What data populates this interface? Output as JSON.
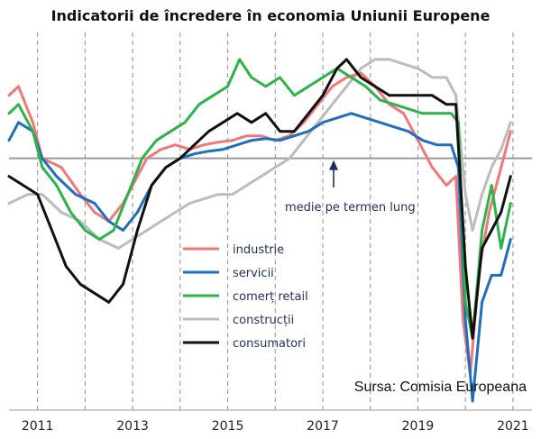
{
  "chart_data": {
    "type": "line",
    "title": "Indicatorii de încredere în economia Uniunii Europene",
    "xlabel": "",
    "ylabel": "",
    "x_ticks": [
      "2011",
      "2013",
      "2015",
      "2017",
      "2019",
      "2021"
    ],
    "x_range": [
      2010.4,
      2021.4
    ],
    "y_range": [
      -28,
      14
    ],
    "grid_vertical_dashed": true,
    "legend_position": "center-left",
    "reference_line": {
      "value": 0,
      "color": "#9a9a9a"
    },
    "annotation": {
      "text": "medie pe termen lung",
      "arrow_to_value": 0
    },
    "source": "Sursa: Comisia Europeana",
    "series": [
      {
        "name": "industrie",
        "color": "#f07878",
        "points": [
          [
            2010.4,
            7
          ],
          [
            2010.6,
            8
          ],
          [
            2010.9,
            4
          ],
          [
            2011.1,
            0
          ],
          [
            2011.5,
            -1
          ],
          [
            2011.9,
            -4
          ],
          [
            2012.2,
            -6
          ],
          [
            2012.5,
            -7
          ],
          [
            2012.8,
            -5
          ],
          [
            2013.0,
            -3
          ],
          [
            2013.3,
            0
          ],
          [
            2013.6,
            1
          ],
          [
            2013.9,
            1.5
          ],
          [
            2014.2,
            1
          ],
          [
            2014.5,
            1.5
          ],
          [
            2014.8,
            1.8
          ],
          [
            2015.1,
            2
          ],
          [
            2015.4,
            2.5
          ],
          [
            2015.7,
            2.5
          ],
          [
            2016.0,
            2
          ],
          [
            2016.3,
            2.5
          ],
          [
            2016.6,
            4
          ],
          [
            2016.9,
            6
          ],
          [
            2017.2,
            8
          ],
          [
            2017.5,
            9
          ],
          [
            2017.8,
            9.5
          ],
          [
            2018.1,
            8
          ],
          [
            2018.4,
            6
          ],
          [
            2018.7,
            5
          ],
          [
            2019.0,
            2
          ],
          [
            2019.3,
            -1
          ],
          [
            2019.6,
            -3
          ],
          [
            2019.8,
            -2
          ],
          [
            2019.95,
            -18
          ],
          [
            2020.1,
            -24
          ],
          [
            2020.3,
            -12
          ],
          [
            2020.5,
            -6
          ],
          [
            2020.7,
            -2
          ],
          [
            2020.8,
            0
          ],
          [
            2020.95,
            3
          ]
        ]
      },
      {
        "name": "servicii",
        "color": "#1f6fbf",
        "points": [
          [
            2010.4,
            2
          ],
          [
            2010.6,
            4
          ],
          [
            2010.9,
            3
          ],
          [
            2011.1,
            0
          ],
          [
            2011.4,
            -2
          ],
          [
            2011.8,
            -4
          ],
          [
            2012.2,
            -5
          ],
          [
            2012.5,
            -7
          ],
          [
            2012.8,
            -8
          ],
          [
            2013.1,
            -6
          ],
          [
            2013.4,
            -3
          ],
          [
            2013.7,
            -1
          ],
          [
            2014.0,
            0
          ],
          [
            2014.3,
            0.5
          ],
          [
            2014.6,
            0.8
          ],
          [
            2014.9,
            1
          ],
          [
            2015.2,
            1.5
          ],
          [
            2015.5,
            2
          ],
          [
            2015.8,
            2.2
          ],
          [
            2016.1,
            2
          ],
          [
            2016.4,
            2.5
          ],
          [
            2016.7,
            3
          ],
          [
            2017.0,
            4
          ],
          [
            2017.3,
            4.5
          ],
          [
            2017.6,
            5
          ],
          [
            2017.9,
            4.5
          ],
          [
            2018.2,
            4
          ],
          [
            2018.5,
            3.5
          ],
          [
            2018.8,
            3
          ],
          [
            2019.1,
            2
          ],
          [
            2019.4,
            1.5
          ],
          [
            2019.7,
            1.5
          ],
          [
            2019.85,
            -1
          ],
          [
            2020.0,
            -18
          ],
          [
            2020.15,
            -27
          ],
          [
            2020.35,
            -16
          ],
          [
            2020.55,
            -13
          ],
          [
            2020.75,
            -13
          ],
          [
            2020.95,
            -9
          ]
        ]
      },
      {
        "name": "comerț retail",
        "color": "#2db34a",
        "points": [
          [
            2010.4,
            5
          ],
          [
            2010.6,
            6
          ],
          [
            2010.9,
            3
          ],
          [
            2011.1,
            -1
          ],
          [
            2011.4,
            -3
          ],
          [
            2011.7,
            -6
          ],
          [
            2012.0,
            -8
          ],
          [
            2012.3,
            -9
          ],
          [
            2012.6,
            -8
          ],
          [
            2012.9,
            -4
          ],
          [
            2013.2,
            0
          ],
          [
            2013.5,
            2
          ],
          [
            2013.8,
            3
          ],
          [
            2014.1,
            4
          ],
          [
            2014.4,
            6
          ],
          [
            2014.7,
            7
          ],
          [
            2015.0,
            8
          ],
          [
            2015.25,
            11
          ],
          [
            2015.5,
            9
          ],
          [
            2015.8,
            8
          ],
          [
            2016.1,
            9
          ],
          [
            2016.4,
            7
          ],
          [
            2016.7,
            8
          ],
          [
            2017.0,
            9
          ],
          [
            2017.3,
            10
          ],
          [
            2017.6,
            9
          ],
          [
            2017.9,
            8
          ],
          [
            2018.2,
            6.5
          ],
          [
            2018.5,
            6
          ],
          [
            2018.8,
            5.5
          ],
          [
            2019.1,
            5
          ],
          [
            2019.4,
            5
          ],
          [
            2019.7,
            5
          ],
          [
            2019.85,
            4
          ],
          [
            2020.0,
            -16
          ],
          [
            2020.15,
            -20
          ],
          [
            2020.35,
            -8
          ],
          [
            2020.55,
            -3
          ],
          [
            2020.75,
            -10
          ],
          [
            2020.95,
            -5
          ]
        ]
      },
      {
        "name": "construcții",
        "color": "#bcbcbc",
        "points": [
          [
            2010.4,
            -5
          ],
          [
            2010.8,
            -4
          ],
          [
            2011.1,
            -4
          ],
          [
            2011.5,
            -6
          ],
          [
            2011.9,
            -7
          ],
          [
            2012.3,
            -9
          ],
          [
            2012.7,
            -10
          ],
          [
            2013.0,
            -9
          ],
          [
            2013.3,
            -8
          ],
          [
            2013.6,
            -7
          ],
          [
            2013.9,
            -6
          ],
          [
            2014.2,
            -5
          ],
          [
            2014.5,
            -4.5
          ],
          [
            2014.8,
            -4
          ],
          [
            2015.1,
            -4
          ],
          [
            2015.4,
            -3
          ],
          [
            2015.7,
            -2
          ],
          [
            2016.0,
            -1
          ],
          [
            2016.3,
            0
          ],
          [
            2016.6,
            2
          ],
          [
            2016.9,
            4
          ],
          [
            2017.2,
            6
          ],
          [
            2017.5,
            8
          ],
          [
            2017.8,
            10
          ],
          [
            2018.1,
            11
          ],
          [
            2018.4,
            11
          ],
          [
            2018.7,
            10.5
          ],
          [
            2019.0,
            10
          ],
          [
            2019.3,
            9
          ],
          [
            2019.6,
            9
          ],
          [
            2019.8,
            7
          ],
          [
            2020.0,
            -4
          ],
          [
            2020.15,
            -8
          ],
          [
            2020.35,
            -4
          ],
          [
            2020.55,
            -1
          ],
          [
            2020.75,
            1
          ],
          [
            2020.95,
            4
          ]
        ]
      },
      {
        "name": "consumatori",
        "color": "#111111",
        "points": [
          [
            2010.4,
            -2
          ],
          [
            2010.7,
            -3
          ],
          [
            2011.0,
            -4
          ],
          [
            2011.3,
            -8
          ],
          [
            2011.6,
            -12
          ],
          [
            2011.9,
            -14
          ],
          [
            2012.2,
            -15
          ],
          [
            2012.5,
            -16
          ],
          [
            2012.8,
            -14
          ],
          [
            2013.1,
            -8
          ],
          [
            2013.4,
            -3
          ],
          [
            2013.7,
            -1
          ],
          [
            2014.0,
            0
          ],
          [
            2014.3,
            1.5
          ],
          [
            2014.6,
            3
          ],
          [
            2014.9,
            4
          ],
          [
            2015.2,
            5
          ],
          [
            2015.5,
            4
          ],
          [
            2015.8,
            5
          ],
          [
            2016.1,
            3
          ],
          [
            2016.4,
            3
          ],
          [
            2016.7,
            5
          ],
          [
            2017.0,
            7
          ],
          [
            2017.3,
            10
          ],
          [
            2017.5,
            11
          ],
          [
            2017.8,
            9
          ],
          [
            2018.1,
            8
          ],
          [
            2018.4,
            7
          ],
          [
            2018.7,
            7
          ],
          [
            2019.0,
            7
          ],
          [
            2019.3,
            7
          ],
          [
            2019.6,
            6
          ],
          [
            2019.8,
            6
          ],
          [
            2020.0,
            -12
          ],
          [
            2020.15,
            -20
          ],
          [
            2020.35,
            -10
          ],
          [
            2020.55,
            -8
          ],
          [
            2020.75,
            -6
          ],
          [
            2020.95,
            -2
          ]
        ]
      }
    ]
  }
}
